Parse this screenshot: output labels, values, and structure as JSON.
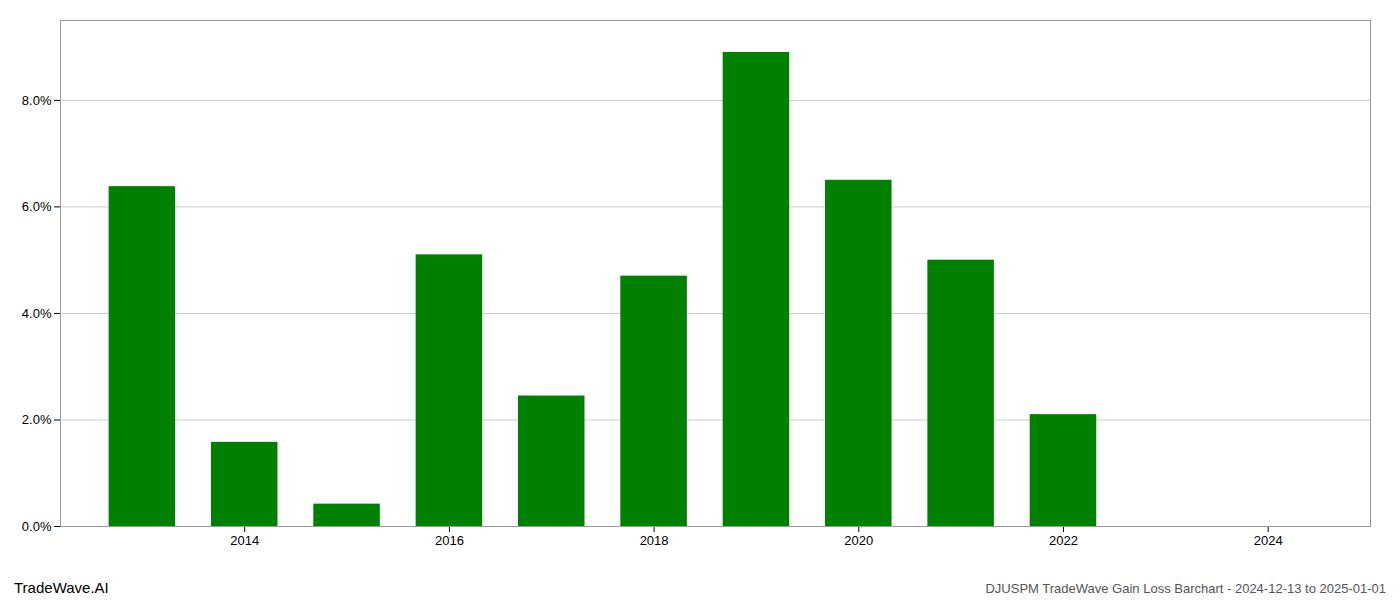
{
  "chart_data": {
    "type": "bar",
    "annotations": [
      "TradeWave.AI",
      "DJUSPM TradeWave Gain Loss Barchart - 2024-12-13 to 2025-01-01"
    ],
    "x": [
      2013,
      2014,
      2015,
      2016,
      2017,
      2018,
      2019,
      2020,
      2021,
      2022,
      2023
    ],
    "values": [
      0.0638,
      0.0158,
      0.0042,
      0.051,
      0.0245,
      0.047,
      0.089,
      0.065,
      0.05,
      0.021,
      0.0
    ],
    "color": "#008000",
    "xlim": [
      2012.2,
      2025.0
    ],
    "xticks": [
      2014,
      2016,
      2018,
      2020,
      2022,
      2024
    ],
    "ylim": [
      0,
      0.095
    ],
    "yticks": [
      {
        "value": 0.0,
        "label": "0.0%"
      },
      {
        "value": 0.02,
        "label": "2.0%"
      },
      {
        "value": 0.04,
        "label": "4.0%"
      },
      {
        "value": 0.06,
        "label": "6.0%"
      },
      {
        "value": 0.08,
        "label": "8.0%"
      }
    ],
    "grid": true
  }
}
